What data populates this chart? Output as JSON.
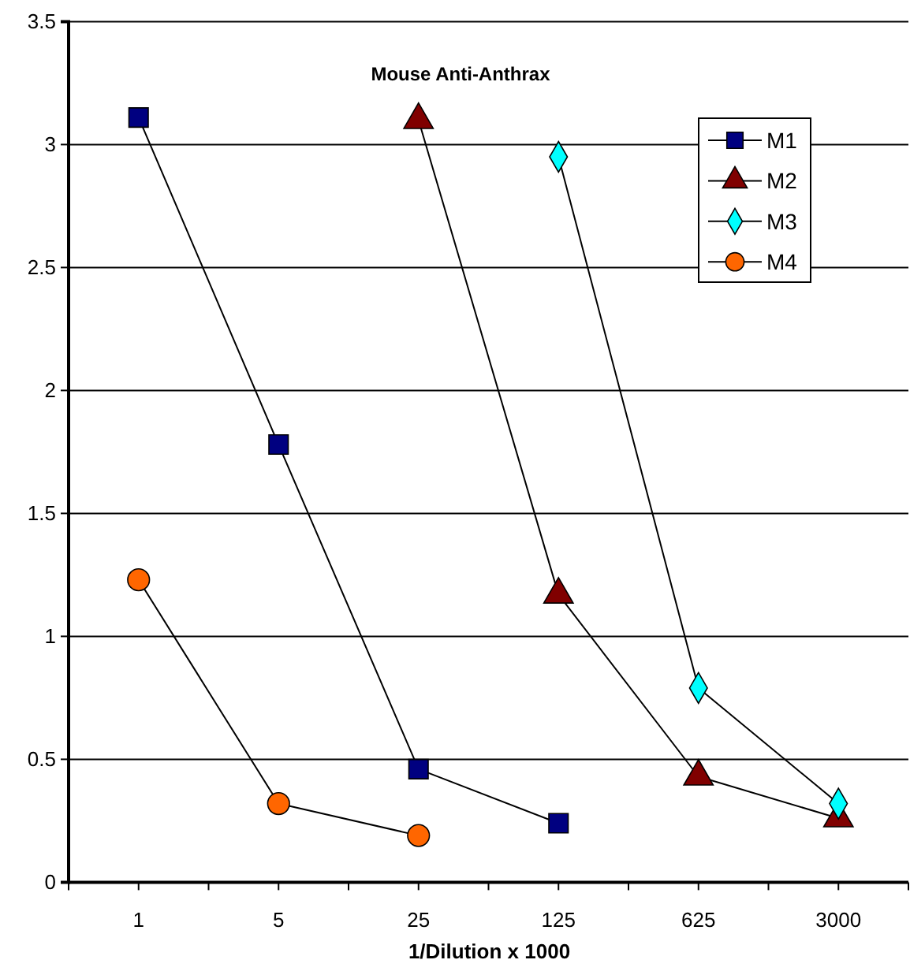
{
  "chart_data": {
    "type": "line",
    "title": "Mouse Anti-Anthrax",
    "xlabel": "1/Dilution x 1000",
    "categories": [
      "1",
      "5",
      "25",
      "125",
      "625",
      "3000"
    ],
    "series": [
      {
        "name": "M1",
        "color": "#000080",
        "marker": "square",
        "values": [
          3.11,
          1.78,
          0.46,
          0.24,
          null,
          null
        ]
      },
      {
        "name": "M2",
        "color": "#800000",
        "marker": "triangle",
        "values": [
          null,
          null,
          3.1,
          1.17,
          0.43,
          0.26
        ]
      },
      {
        "name": "M3",
        "color": "#00ffff",
        "marker": "diamond",
        "values": [
          null,
          null,
          null,
          2.95,
          0.79,
          0.32
        ]
      },
      {
        "name": "M4",
        "color": "#ff6600",
        "marker": "circle",
        "values": [
          1.23,
          0.32,
          0.19,
          null,
          null,
          null
        ]
      }
    ],
    "ylim": [
      0,
      3.5
    ],
    "yticks": [
      0,
      0.5,
      1,
      1.5,
      2,
      2.5,
      3,
      3.5
    ],
    "grid": "y",
    "legend": "top right"
  }
}
